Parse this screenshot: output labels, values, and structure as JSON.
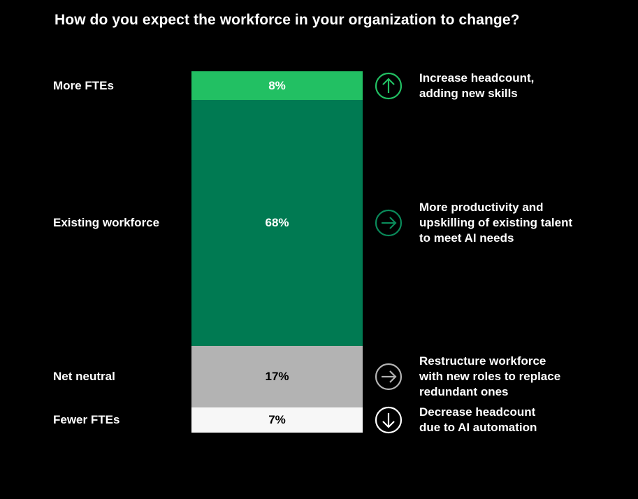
{
  "chart_data": {
    "type": "bar",
    "subtype": "stacked-100",
    "title": "How do you expect the workforce in your organization to change?",
    "categories": [
      "More FTEs",
      "Existing workforce",
      "Net neutral",
      "Fewer FTEs"
    ],
    "values": [
      8,
      68,
      17,
      7
    ],
    "data_labels": [
      "8%",
      "68%",
      "17%",
      "7%"
    ],
    "colors": [
      "#22c063",
      "#007a52",
      "#b3b3b3",
      "#f7f7f7"
    ],
    "label_colors": [
      "#ffffff",
      "#ffffff",
      "#000000",
      "#000000"
    ],
    "icon_colors": [
      "#22c063",
      "#0a8a5a",
      "#b3b3b3",
      "#ffffff"
    ],
    "icons": [
      "arrow-up-circle-icon",
      "arrow-right-circle-icon",
      "arrow-right-circle-icon",
      "arrow-down-circle-icon"
    ],
    "notes": [
      "Increase headcount,\nadding new skills",
      "More productivity and\nupskilling of existing talent\nto meet AI needs",
      "Restructure workforce\nwith new roles to replace\nredundant ones",
      "Decrease headcount\ndue to AI automation"
    ]
  }
}
